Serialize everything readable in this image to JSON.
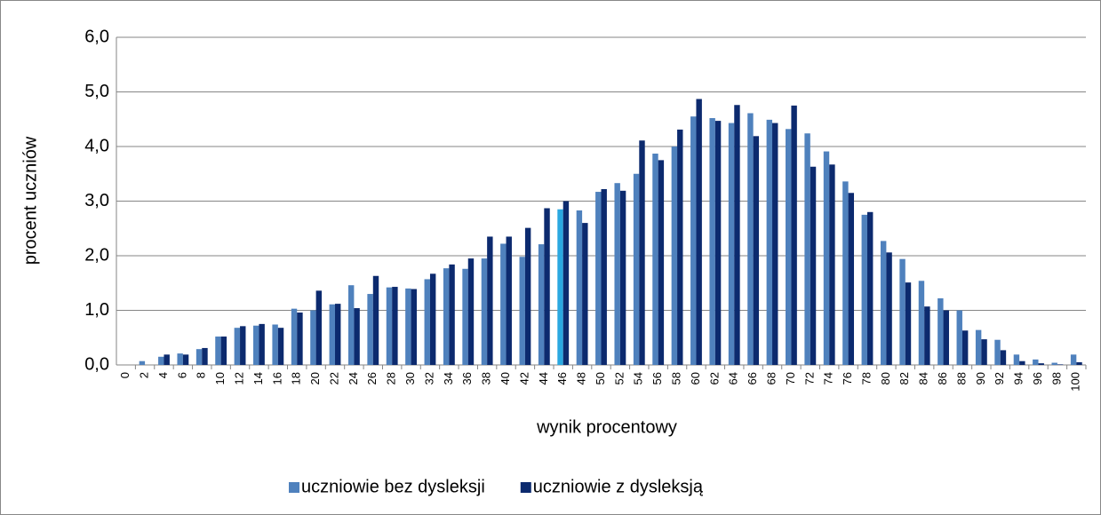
{
  "chart_data": {
    "type": "bar",
    "x_label": "wynik procentowy",
    "y_label": "procent uczniów",
    "categories": [
      "0",
      "2",
      "4",
      "6",
      "8",
      "10",
      "12",
      "14",
      "16",
      "18",
      "20",
      "22",
      "24",
      "26",
      "28",
      "30",
      "32",
      "34",
      "36",
      "38",
      "40",
      "42",
      "44",
      "46",
      "48",
      "50",
      "52",
      "54",
      "56",
      "58",
      "60",
      "62",
      "64",
      "66",
      "68",
      "70",
      "72",
      "74",
      "76",
      "78",
      "80",
      "82",
      "84",
      "86",
      "88",
      "90",
      "92",
      "94",
      "96",
      "98",
      "100"
    ],
    "series": [
      {
        "name": "uczniowie bez dysleksji",
        "color": "#4f81bd",
        "colors": [
          "#4f81bd",
          "#4f81bd",
          "#4f81bd",
          "#4f81bd",
          "#4f81bd",
          "#4f81bd",
          "#4f81bd",
          "#4f81bd",
          "#4f81bd",
          "#4f81bd",
          "#4f81bd",
          "#4f81bd",
          "#4f81bd",
          "#4f81bd",
          "#4f81bd",
          "#4f81bd",
          "#4f81bd",
          "#4f81bd",
          "#4f81bd",
          "#4f81bd",
          "#4f81bd",
          "#4f81bd",
          "#4f81bd",
          "#2aa8e0",
          "#4f81bd",
          "#4f81bd",
          "#4f81bd",
          "#4f81bd",
          "#4f81bd",
          "#4f81bd",
          "#4f81bd",
          "#4f81bd",
          "#4f81bd",
          "#4f81bd",
          "#4f81bd",
          "#4f81bd",
          "#4f81bd",
          "#4f81bd",
          "#4f81bd",
          "#4f81bd",
          "#4f81bd",
          "#4f81bd",
          "#4f81bd",
          "#4f81bd",
          "#4f81bd",
          "#4f81bd",
          "#4f81bd",
          "#4f81bd",
          "#4f81bd",
          "#4f81bd",
          "#4f81bd"
        ],
        "values": [
          0,
          0.07,
          0.15,
          0.21,
          0.29,
          0.52,
          0.68,
          0.72,
          0.74,
          1.03,
          1.0,
          1.11,
          1.46,
          1.3,
          1.42,
          1.4,
          1.57,
          1.77,
          1.76,
          1.95,
          2.22,
          1.98,
          2.21,
          2.85,
          2.83,
          3.17,
          3.33,
          3.5,
          3.87,
          4.0,
          4.55,
          4.52,
          4.43,
          4.61,
          4.49,
          4.32,
          4.24,
          3.91,
          3.36,
          2.75,
          2.27,
          1.94,
          1.54,
          1.22,
          1.0,
          0.64,
          0.46,
          0.19,
          0.1,
          0.04,
          0.19
        ]
      },
      {
        "name": "uczniowie z dysleksją",
        "color": "#0c2a6e",
        "values": [
          0,
          0,
          0.19,
          0.19,
          0.31,
          0.52,
          0.71,
          0.75,
          0.68,
          0.96,
          1.36,
          1.12,
          1.04,
          1.63,
          1.43,
          1.39,
          1.67,
          1.84,
          1.95,
          2.35,
          2.35,
          2.51,
          2.87,
          3.0,
          2.6,
          3.22,
          3.19,
          4.11,
          3.75,
          4.31,
          4.87,
          4.47,
          4.76,
          4.19,
          4.43,
          4.75,
          3.63,
          3.67,
          3.15,
          2.8,
          2.06,
          1.51,
          1.07,
          1.0,
          0.63,
          0.47,
          0.27,
          0.07,
          0.03,
          0.01,
          0.05
        ]
      }
    ],
    "ylim": [
      0,
      6
    ],
    "yticks": [
      {
        "value": 0,
        "label": "0,0"
      },
      {
        "value": 1,
        "label": "1,0"
      },
      {
        "value": 2,
        "label": "2,0"
      },
      {
        "value": 3,
        "label": "3,0"
      },
      {
        "value": 4,
        "label": "4,0"
      },
      {
        "value": 5,
        "label": "5,0"
      },
      {
        "value": 6,
        "label": "6,0"
      }
    ],
    "grid": true,
    "legend": "bottom"
  }
}
